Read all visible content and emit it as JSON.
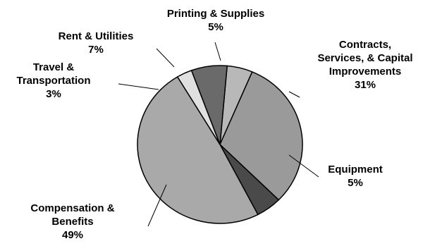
{
  "chart_data": {
    "type": "pie",
    "title": "",
    "slices": [
      {
        "label_lines": [
          "Printing & Supplies"
        ],
        "value": 5,
        "value_label": "5%",
        "color": "#b8b8b8"
      },
      {
        "label_lines": [
          "Contracts,",
          "Services, & Capital",
          "Improvements"
        ],
        "value": 31,
        "value_label": "31%",
        "color": "#9a9a9a"
      },
      {
        "label_lines": [
          "Equipment"
        ],
        "value": 5,
        "value_label": "5%",
        "color": "#4a4a4a"
      },
      {
        "label_lines": [
          "Compensation &",
          "Benefits"
        ],
        "value": 49,
        "value_label": "49%",
        "color": "#a9a9a9"
      },
      {
        "label_lines": [
          "Travel &",
          "Transportation"
        ],
        "value": 3,
        "value_label": "3%",
        "color": "#e0e0e0"
      },
      {
        "label_lines": [
          "Rent & Utilities"
        ],
        "value": 7,
        "value_label": "7%",
        "color": "#6a6a6a"
      }
    ],
    "start_angle_deg": 5,
    "direction": "clockwise",
    "legend": "none",
    "slice_outline": "#000000"
  }
}
